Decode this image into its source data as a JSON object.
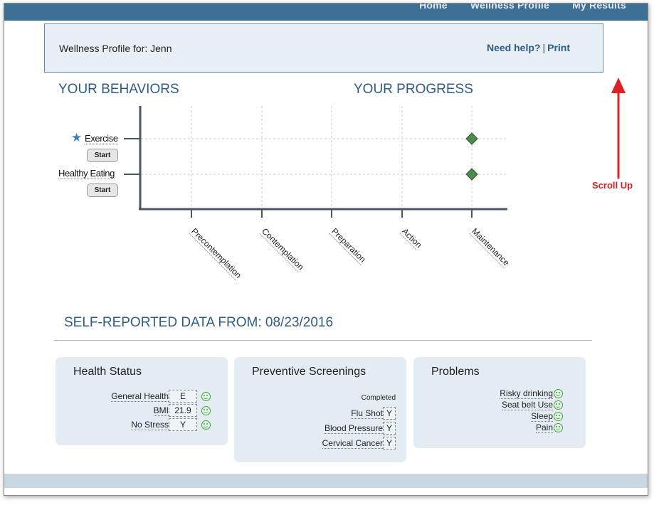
{
  "nav": {
    "items": [
      "Home",
      "Wellness Profile",
      "My Results"
    ]
  },
  "profile": {
    "label": "Wellness Profile for: Jenn",
    "help_label": "Need help?",
    "separator": "|",
    "print_label": "Print"
  },
  "behaviors": {
    "title": "YOUR BEHAVIORS",
    "items": [
      {
        "label": "Exercise",
        "starred": true,
        "button": "Start",
        "stage": "Maintenance"
      },
      {
        "label": "Healthy Eating",
        "starred": false,
        "button": "Start",
        "stage": "Maintenance"
      }
    ]
  },
  "progress": {
    "title": "YOUR PROGRESS",
    "stages": [
      "Precontemplation",
      "Contemplation",
      "Preparation",
      "Action",
      "Maintenance"
    ]
  },
  "self_reported": {
    "title": "SELF-REPORTED DATA FROM: 08/23/2016"
  },
  "health_status": {
    "title": "Health Status",
    "rows": [
      {
        "label": "General Health",
        "value": "E"
      },
      {
        "label": "BMI",
        "value": "21.9"
      },
      {
        "label": "No Stress",
        "value": "Y"
      }
    ]
  },
  "screenings": {
    "title": "Preventive Screenings",
    "header": "Completed",
    "rows": [
      {
        "label": "Flu Shot",
        "value": "Y"
      },
      {
        "label": "Blood Pressure",
        "value": "Y"
      },
      {
        "label": "Cervical Cancer",
        "value": "Y"
      }
    ]
  },
  "problems": {
    "title": "Problems",
    "rows": [
      "Risky drinking",
      "Seat belt Use",
      "Sleep",
      "Pain"
    ]
  },
  "annotation": {
    "text": "Scroll Up",
    "color": "#e02020"
  },
  "colors": {
    "accent": "#2d5c86",
    "topbar": "#3e6f95",
    "marker": "#4f8a4f"
  }
}
